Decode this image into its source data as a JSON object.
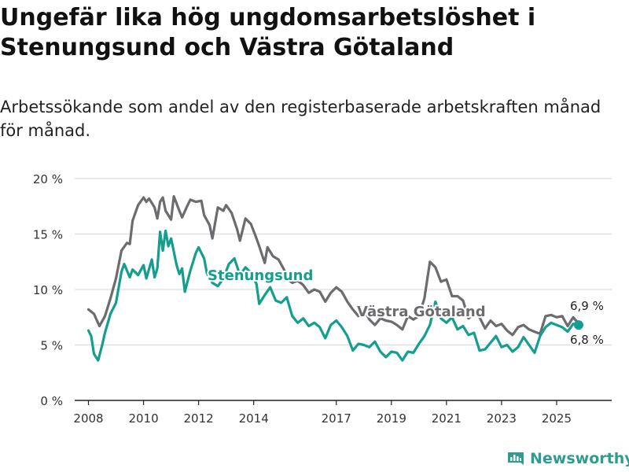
{
  "title": "Ungefär lika hög ungdomsarbetslöshet i Stenungsund och Västra Götaland",
  "subtitle": "Arbetssökande som andel av den registerbaserade arbetskraften månad för månad.",
  "brand": "Newsworthy",
  "colors": {
    "stenungsund": "#139e8f",
    "vastra_gotaland": "#6b6b70",
    "grid": "#dddddd",
    "axis": "#222222",
    "brand": "#2e9c8f"
  },
  "chart_data": {
    "type": "line",
    "x_unit": "year (decimal, monthly)",
    "xlim": [
      2007.5,
      2027.0
    ],
    "ylim": [
      0,
      20
    ],
    "x_ticks": [
      2008,
      2010,
      2012,
      2014,
      2017,
      2019,
      2021,
      2023,
      2025
    ],
    "x_tick_labels": [
      "2008",
      "2010",
      "2012",
      "2014",
      "2017",
      "2019",
      "2021",
      "2023",
      "2025"
    ],
    "y_ticks": [
      0,
      5,
      10,
      15,
      20
    ],
    "y_tick_labels": [
      "0 %",
      "5 %",
      "10 %",
      "15 %",
      "20 %"
    ],
    "grid": true,
    "series": [
      {
        "name": "Västra Götaland",
        "label": "Västra Götaland",
        "color": "#6b6b70",
        "end_label": "6,9 %",
        "points": [
          [
            2008.0,
            8.2
          ],
          [
            2008.2,
            7.8
          ],
          [
            2008.4,
            6.7
          ],
          [
            2008.6,
            7.6
          ],
          [
            2008.8,
            9.2
          ],
          [
            2009.0,
            11.0
          ],
          [
            2009.2,
            13.5
          ],
          [
            2009.4,
            14.2
          ],
          [
            2009.5,
            14.1
          ],
          [
            2009.6,
            16.2
          ],
          [
            2009.8,
            17.6
          ],
          [
            2010.0,
            18.3
          ],
          [
            2010.1,
            17.9
          ],
          [
            2010.2,
            18.2
          ],
          [
            2010.4,
            17.4
          ],
          [
            2010.5,
            16.4
          ],
          [
            2010.6,
            17.9
          ],
          [
            2010.7,
            18.3
          ],
          [
            2010.8,
            17.1
          ],
          [
            2011.0,
            16.3
          ],
          [
            2011.1,
            18.4
          ],
          [
            2011.3,
            17.1
          ],
          [
            2011.4,
            16.5
          ],
          [
            2011.6,
            17.6
          ],
          [
            2011.7,
            18.1
          ],
          [
            2011.9,
            17.9
          ],
          [
            2012.1,
            18.0
          ],
          [
            2012.2,
            16.7
          ],
          [
            2012.4,
            15.8
          ],
          [
            2012.5,
            14.6
          ],
          [
            2012.7,
            17.4
          ],
          [
            2012.9,
            17.1
          ],
          [
            2013.0,
            17.6
          ],
          [
            2013.2,
            16.9
          ],
          [
            2013.4,
            15.4
          ],
          [
            2013.5,
            14.4
          ],
          [
            2013.7,
            16.4
          ],
          [
            2013.9,
            15.9
          ],
          [
            2014.1,
            14.6
          ],
          [
            2014.2,
            13.9
          ],
          [
            2014.4,
            12.4
          ],
          [
            2014.5,
            13.8
          ],
          [
            2014.7,
            13.0
          ],
          [
            2014.9,
            12.7
          ],
          [
            2015.1,
            11.8
          ],
          [
            2015.2,
            11.0
          ],
          [
            2015.4,
            10.6
          ],
          [
            2015.6,
            10.8
          ],
          [
            2015.8,
            10.4
          ],
          [
            2016.0,
            9.7
          ],
          [
            2016.2,
            10.0
          ],
          [
            2016.4,
            9.8
          ],
          [
            2016.6,
            8.9
          ],
          [
            2016.8,
            9.7
          ],
          [
            2017.0,
            10.2
          ],
          [
            2017.2,
            9.8
          ],
          [
            2017.4,
            8.9
          ],
          [
            2017.6,
            8.2
          ],
          [
            2017.8,
            7.6
          ],
          [
            2018.0,
            8.2
          ],
          [
            2018.2,
            7.3
          ],
          [
            2018.4,
            6.8
          ],
          [
            2018.6,
            7.4
          ],
          [
            2018.8,
            7.2
          ],
          [
            2019.0,
            7.1
          ],
          [
            2019.2,
            6.8
          ],
          [
            2019.4,
            6.4
          ],
          [
            2019.6,
            7.6
          ],
          [
            2019.8,
            7.3
          ],
          [
            2020.0,
            7.6
          ],
          [
            2020.2,
            9.2
          ],
          [
            2020.4,
            12.5
          ],
          [
            2020.6,
            12.0
          ],
          [
            2020.8,
            10.7
          ],
          [
            2021.0,
            10.9
          ],
          [
            2021.2,
            9.4
          ],
          [
            2021.4,
            9.4
          ],
          [
            2021.6,
            9.0
          ],
          [
            2021.8,
            7.4
          ],
          [
            2022.0,
            7.8
          ],
          [
            2022.2,
            7.5
          ],
          [
            2022.4,
            6.5
          ],
          [
            2022.6,
            7.2
          ],
          [
            2022.8,
            6.7
          ],
          [
            2023.0,
            6.9
          ],
          [
            2023.2,
            6.3
          ],
          [
            2023.4,
            5.9
          ],
          [
            2023.6,
            6.6
          ],
          [
            2023.8,
            6.8
          ],
          [
            2024.0,
            6.4
          ],
          [
            2024.2,
            6.2
          ],
          [
            2024.4,
            6.0
          ],
          [
            2024.6,
            7.6
          ],
          [
            2024.8,
            7.7
          ],
          [
            2025.0,
            7.5
          ],
          [
            2025.2,
            7.6
          ],
          [
            2025.4,
            6.7
          ],
          [
            2025.6,
            7.5
          ],
          [
            2025.8,
            6.9
          ]
        ]
      },
      {
        "name": "Stenungsund",
        "label": "Stenungsund",
        "color": "#139e8f",
        "end_label": "6,8 %",
        "points": [
          [
            2008.0,
            6.3
          ],
          [
            2008.1,
            5.8
          ],
          [
            2008.2,
            4.2
          ],
          [
            2008.35,
            3.6
          ],
          [
            2008.5,
            5.0
          ],
          [
            2008.6,
            6.1
          ],
          [
            2008.8,
            7.8
          ],
          [
            2009.0,
            8.8
          ],
          [
            2009.2,
            11.6
          ],
          [
            2009.3,
            12.3
          ],
          [
            2009.5,
            11.1
          ],
          [
            2009.6,
            11.8
          ],
          [
            2009.8,
            11.3
          ],
          [
            2010.0,
            12.2
          ],
          [
            2010.1,
            11.0
          ],
          [
            2010.3,
            12.7
          ],
          [
            2010.4,
            11.1
          ],
          [
            2010.5,
            11.9
          ],
          [
            2010.6,
            15.2
          ],
          [
            2010.7,
            13.5
          ],
          [
            2010.8,
            15.3
          ],
          [
            2010.9,
            13.9
          ],
          [
            2011.0,
            14.6
          ],
          [
            2011.2,
            12.2
          ],
          [
            2011.3,
            11.4
          ],
          [
            2011.4,
            11.9
          ],
          [
            2011.5,
            9.8
          ],
          [
            2011.7,
            11.7
          ],
          [
            2011.8,
            12.5
          ],
          [
            2011.9,
            13.3
          ],
          [
            2012.0,
            13.8
          ],
          [
            2012.2,
            12.8
          ],
          [
            2012.3,
            11.5
          ],
          [
            2012.5,
            10.6
          ],
          [
            2012.7,
            10.3
          ],
          [
            2012.9,
            11.0
          ],
          [
            2013.1,
            12.3
          ],
          [
            2013.3,
            12.8
          ],
          [
            2013.5,
            11.3
          ],
          [
            2013.7,
            12.0
          ],
          [
            2013.9,
            11.5
          ],
          [
            2014.1,
            10.5
          ],
          [
            2014.2,
            8.7
          ],
          [
            2014.4,
            9.5
          ],
          [
            2014.6,
            10.2
          ],
          [
            2014.8,
            9.0
          ],
          [
            2015.0,
            8.8
          ],
          [
            2015.2,
            9.3
          ],
          [
            2015.4,
            7.6
          ],
          [
            2015.6,
            7.0
          ],
          [
            2015.8,
            7.4
          ],
          [
            2016.0,
            6.7
          ],
          [
            2016.2,
            7.0
          ],
          [
            2016.4,
            6.6
          ],
          [
            2016.6,
            5.6
          ],
          [
            2016.8,
            6.8
          ],
          [
            2017.0,
            7.2
          ],
          [
            2017.2,
            6.6
          ],
          [
            2017.4,
            5.8
          ],
          [
            2017.6,
            4.5
          ],
          [
            2017.8,
            5.1
          ],
          [
            2018.0,
            5.0
          ],
          [
            2018.2,
            4.8
          ],
          [
            2018.4,
            5.3
          ],
          [
            2018.6,
            4.4
          ],
          [
            2018.8,
            3.9
          ],
          [
            2019.0,
            4.4
          ],
          [
            2019.2,
            4.3
          ],
          [
            2019.4,
            3.6
          ],
          [
            2019.6,
            4.4
          ],
          [
            2019.8,
            4.3
          ],
          [
            2020.0,
            5.1
          ],
          [
            2020.2,
            5.8
          ],
          [
            2020.4,
            6.8
          ],
          [
            2020.6,
            8.9
          ],
          [
            2020.8,
            7.4
          ],
          [
            2021.0,
            7.0
          ],
          [
            2021.2,
            7.5
          ],
          [
            2021.4,
            6.4
          ],
          [
            2021.6,
            6.7
          ],
          [
            2021.8,
            5.9
          ],
          [
            2022.0,
            6.1
          ],
          [
            2022.2,
            4.5
          ],
          [
            2022.4,
            4.6
          ],
          [
            2022.6,
            5.2
          ],
          [
            2022.8,
            5.8
          ],
          [
            2023.0,
            4.8
          ],
          [
            2023.2,
            5.0
          ],
          [
            2023.4,
            4.4
          ],
          [
            2023.6,
            4.8
          ],
          [
            2023.8,
            5.7
          ],
          [
            2024.0,
            5.0
          ],
          [
            2024.2,
            4.3
          ],
          [
            2024.4,
            5.8
          ],
          [
            2024.6,
            6.6
          ],
          [
            2024.8,
            7.0
          ],
          [
            2025.0,
            6.8
          ],
          [
            2025.2,
            6.6
          ],
          [
            2025.4,
            6.2
          ],
          [
            2025.6,
            6.9
          ],
          [
            2025.8,
            6.8
          ]
        ]
      }
    ]
  }
}
